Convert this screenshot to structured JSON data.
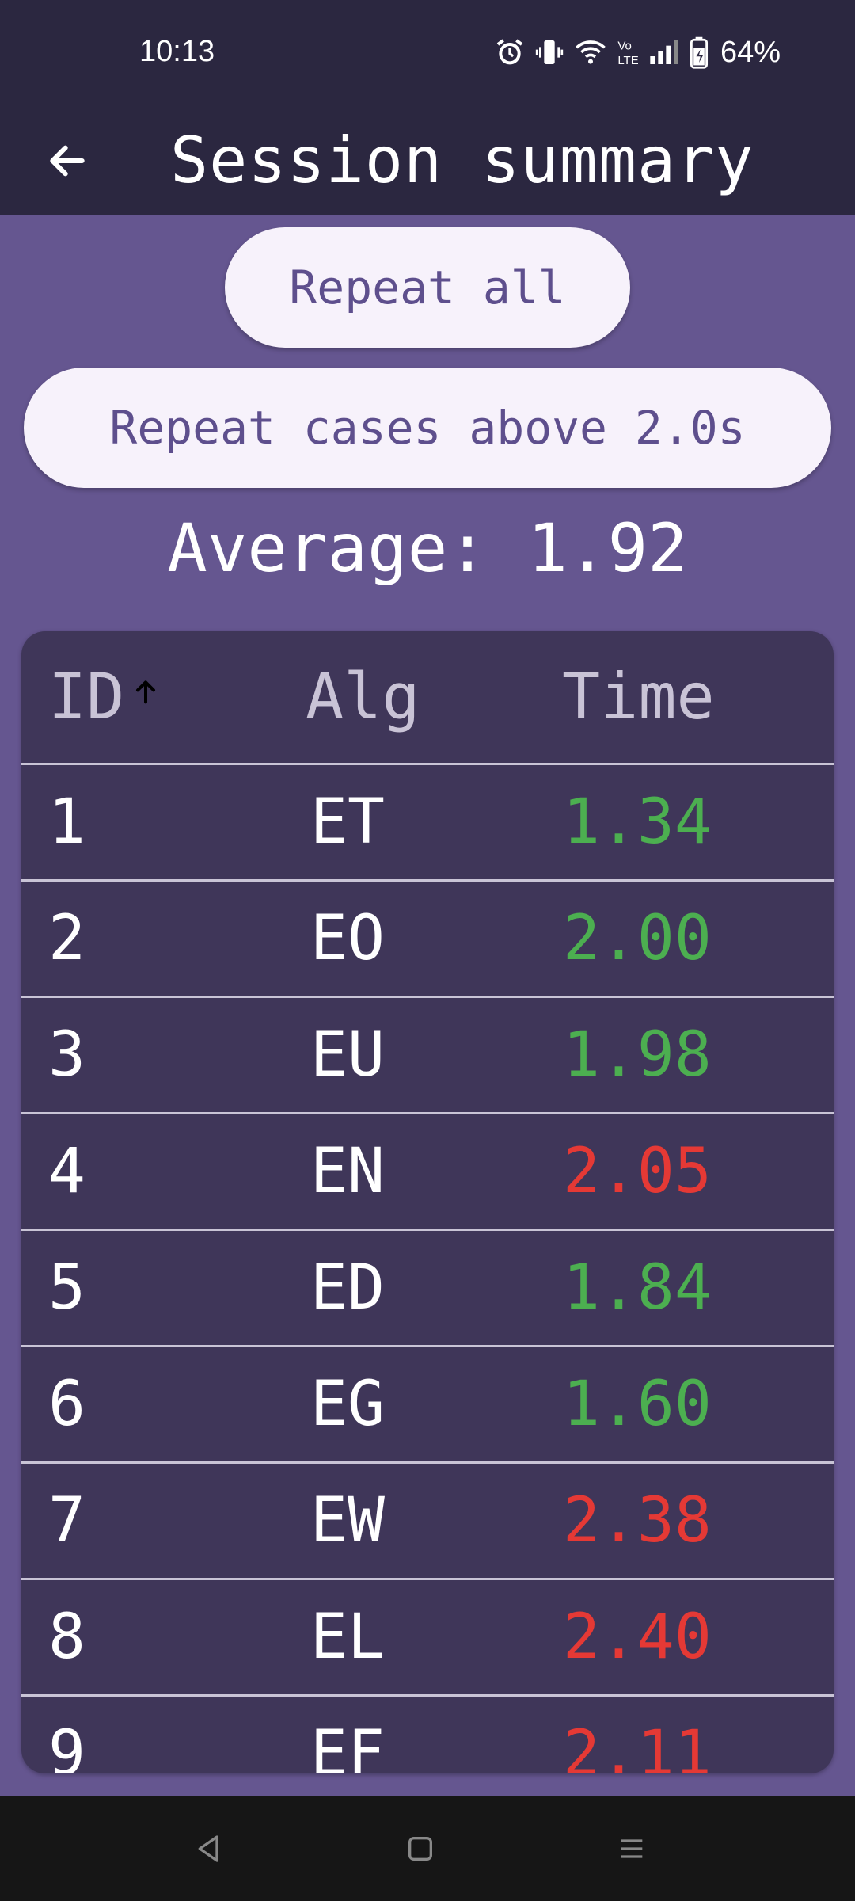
{
  "status_bar": {
    "time": "10:13",
    "battery_percent": "64%",
    "icons": [
      "alarm-icon",
      "vibrate-icon",
      "wifi-icon",
      "volte-icon",
      "signal-icon",
      "battery-icon"
    ]
  },
  "app_bar": {
    "title": "Session summary",
    "back_icon": "arrow-back-icon"
  },
  "actions": {
    "repeat_all_label": "Repeat all",
    "repeat_cases_label": "Repeat cases above 2.0s"
  },
  "summary": {
    "average_label": "Average:",
    "average_value": "1.92"
  },
  "table": {
    "headers": {
      "id": "ID",
      "alg": "Alg",
      "time": "Time"
    },
    "sort": {
      "column": "ID",
      "direction": "ascending",
      "icon": "arrow-up-icon"
    },
    "rows": [
      {
        "id": "1",
        "alg": "ET",
        "time": "1.34",
        "status": "good"
      },
      {
        "id": "2",
        "alg": "EO",
        "time": "2.00",
        "status": "good"
      },
      {
        "id": "3",
        "alg": "EU",
        "time": "1.98",
        "status": "good"
      },
      {
        "id": "4",
        "alg": "EN",
        "time": "2.05",
        "status": "bad"
      },
      {
        "id": "5",
        "alg": "ED",
        "time": "1.84",
        "status": "good"
      },
      {
        "id": "6",
        "alg": "EG",
        "time": "1.60",
        "status": "good"
      },
      {
        "id": "7",
        "alg": "EW",
        "time": "2.38",
        "status": "bad"
      },
      {
        "id": "8",
        "alg": "EL",
        "time": "2.40",
        "status": "bad"
      },
      {
        "id": "9",
        "alg": "EF",
        "time": "2.11",
        "status": "bad"
      }
    ]
  },
  "colors": {
    "background": "#655690",
    "app_bar": "#2b2740",
    "table_bg": "#3f3659",
    "pill_bg": "#f7f2fb",
    "pill_text": "#5e4f8d",
    "good_time": "#4caf50",
    "bad_time": "#e53935"
  },
  "nav_bar": {
    "icons": [
      "nav-back-icon",
      "nav-home-icon",
      "nav-recents-icon"
    ]
  }
}
